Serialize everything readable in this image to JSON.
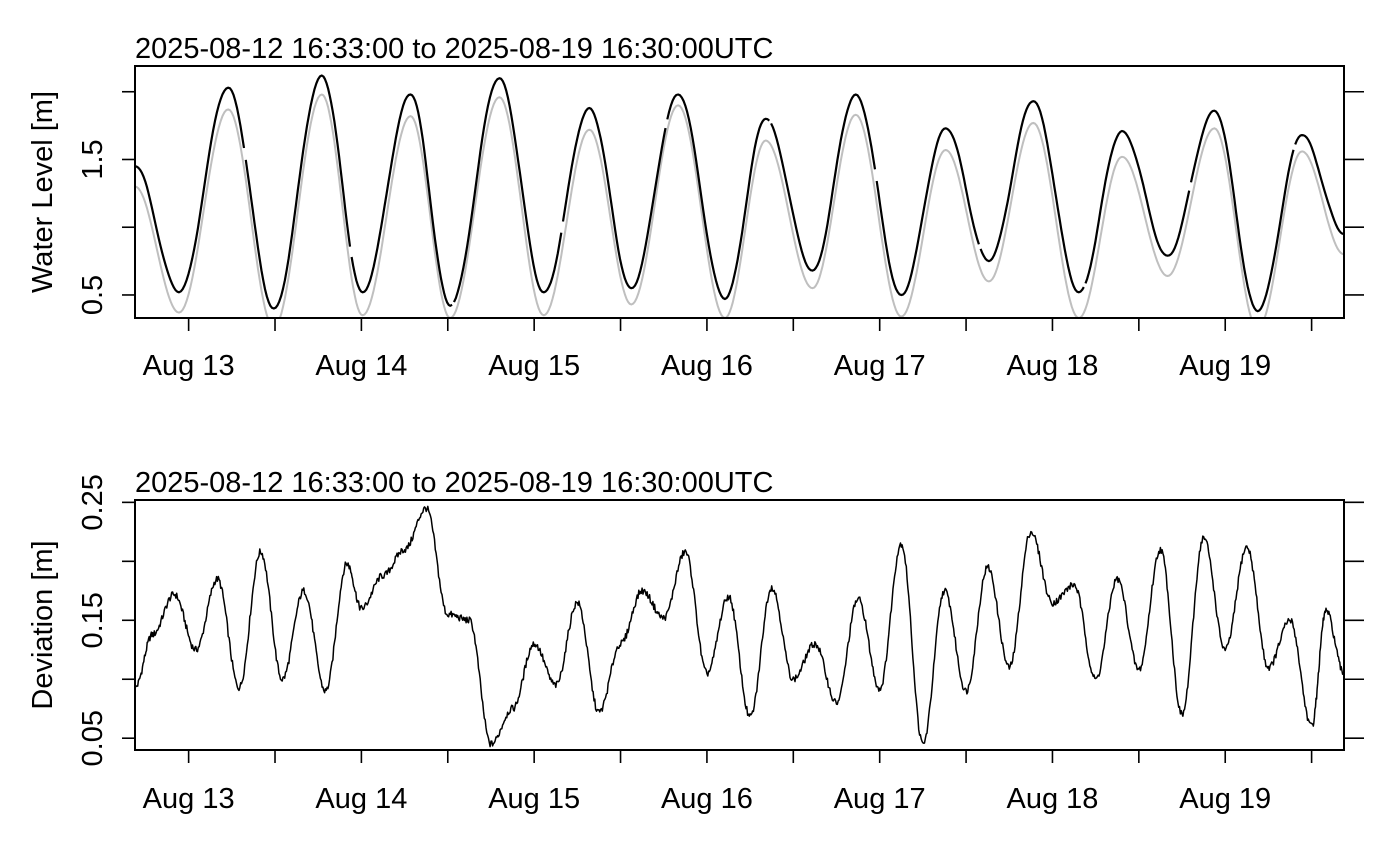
{
  "colors": {
    "observed": "#000000",
    "predicted": "#bfbfbf",
    "deviation": "#000000",
    "frame": "#000000",
    "background": "#ffffff"
  },
  "chart_data": [
    {
      "type": "line",
      "title": "2025-08-12 16:33:00 to 2025-08-19 16:30:00UTC",
      "ylabel": "Water Level [m]",
      "xlabel": "",
      "xlim": [
        "2025-08-12 16:33",
        "2025-08-19 16:30"
      ],
      "ylim": [
        0.33,
        2.19
      ],
      "x_ticks": [
        "2025-08-13 00:00",
        "2025-08-13 12:00",
        "2025-08-14 00:00",
        "2025-08-14 12:00",
        "2025-08-15 00:00",
        "2025-08-15 12:00",
        "2025-08-16 00:00",
        "2025-08-16 12:00",
        "2025-08-17 00:00",
        "2025-08-17 12:00",
        "2025-08-18 00:00",
        "2025-08-18 12:00",
        "2025-08-19 00:00",
        "2025-08-19 12:00"
      ],
      "x_tick_labels": [
        "Aug 13",
        "",
        "Aug 14",
        "",
        "Aug 15",
        "",
        "Aug 16",
        "",
        "Aug 17",
        "",
        "Aug 18",
        "",
        "Aug 19",
        ""
      ],
      "y_ticks": [
        0.5,
        1.0,
        1.5,
        2.0
      ],
      "y_tick_labels": [
        "0.5",
        "",
        "1.5",
        ""
      ],
      "grid": false,
      "right_axis_ticks": true,
      "series": [
        {
          "x": [
            "2025-08-12 16:33",
            "2025-08-12 22:40",
            "2025-08-13 05:30",
            "2025-08-13 11:50",
            "2025-08-13 18:30",
            "2025-08-14 00:10",
            "2025-08-14 06:50",
            "2025-08-14 12:20",
            "2025-08-14 19:10",
            "2025-08-15 01:20",
            "2025-08-15 07:40",
            "2025-08-15 13:30",
            "2025-08-15 20:00",
            "2025-08-16 02:30",
            "2025-08-16 08:10",
            "2025-08-16 14:40",
            "2025-08-16 20:40",
            "2025-08-17 03:00",
            "2025-08-17 09:10",
            "2025-08-17 15:10",
            "2025-08-17 21:20",
            "2025-08-18 03:40",
            "2025-08-18 09:40",
            "2025-08-18 16:00",
            "2025-08-18 22:30",
            "2025-08-19 04:30",
            "2025-08-19 10:40",
            "2025-08-19 16:30"
          ],
          "values": [
            1.45,
            0.52,
            2.03,
            0.4,
            2.12,
            0.52,
            1.98,
            0.42,
            2.1,
            0.52,
            1.88,
            0.55,
            1.98,
            0.47,
            1.8,
            0.68,
            1.98,
            0.5,
            1.73,
            0.75,
            1.93,
            0.52,
            1.71,
            0.79,
            1.86,
            0.38,
            1.68,
            0.95
          ]
        },
        {
          "x": [
            "2025-08-12 16:33",
            "2025-08-12 22:40",
            "2025-08-13 05:30",
            "2025-08-13 11:50",
            "2025-08-13 18:30",
            "2025-08-14 00:10",
            "2025-08-14 06:50",
            "2025-08-14 12:20",
            "2025-08-14 19:10",
            "2025-08-15 01:20",
            "2025-08-15 07:40",
            "2025-08-15 13:30",
            "2025-08-15 20:00",
            "2025-08-16 02:30",
            "2025-08-16 08:10",
            "2025-08-16 14:40",
            "2025-08-16 20:40",
            "2025-08-17 03:00",
            "2025-08-17 09:10",
            "2025-08-17 15:10",
            "2025-08-17 21:20",
            "2025-08-18 03:40",
            "2025-08-18 09:40",
            "2025-08-18 16:00",
            "2025-08-18 22:30",
            "2025-08-19 04:30",
            "2025-08-19 10:40",
            "2025-08-19 16:30"
          ],
          "values": [
            1.3,
            0.37,
            1.87,
            0.26,
            1.98,
            0.35,
            1.82,
            0.33,
            1.96,
            0.35,
            1.72,
            0.43,
            1.9,
            0.33,
            1.64,
            0.55,
            1.83,
            0.34,
            1.57,
            0.6,
            1.77,
            0.33,
            1.52,
            0.64,
            1.73,
            0.25,
            1.56,
            0.8
          ]
        }
      ]
    },
    {
      "type": "line",
      "title": "2025-08-12 16:33:00 to 2025-08-19 16:30:00UTC",
      "ylabel": "Deviation [m]",
      "xlabel": "",
      "xlim": [
        "2025-08-12 16:33",
        "2025-08-19 16:30"
      ],
      "ylim": [
        0.04,
        0.252
      ],
      "x_ticks": [
        "2025-08-13 00:00",
        "2025-08-13 12:00",
        "2025-08-14 00:00",
        "2025-08-14 12:00",
        "2025-08-15 00:00",
        "2025-08-15 12:00",
        "2025-08-16 00:00",
        "2025-08-16 12:00",
        "2025-08-17 00:00",
        "2025-08-17 12:00",
        "2025-08-18 00:00",
        "2025-08-18 12:00",
        "2025-08-19 00:00",
        "2025-08-19 12:00"
      ],
      "x_tick_labels": [
        "Aug 13",
        "",
        "Aug 14",
        "",
        "Aug 15",
        "",
        "Aug 16",
        "",
        "Aug 17",
        "",
        "Aug 18",
        "",
        "Aug 19",
        ""
      ],
      "y_ticks": [
        0.05,
        0.1,
        0.15,
        0.2,
        0.25
      ],
      "y_tick_labels": [
        "0.05",
        "",
        "0.15",
        "",
        "0.25"
      ],
      "grid": false,
      "right_axis_ticks": true,
      "series": [
        {
          "x": [
            "2025-08-12 16:33",
            "2025-08-12 19:00",
            "2025-08-12 22:00",
            "2025-08-13 01:00",
            "2025-08-13 04:00",
            "2025-08-13 07:00",
            "2025-08-13 10:00",
            "2025-08-13 13:00",
            "2025-08-13 16:00",
            "2025-08-13 19:00",
            "2025-08-13 22:00",
            "2025-08-14 00:00",
            "2025-08-14 03:00",
            "2025-08-14 06:00",
            "2025-08-14 09:00",
            "2025-08-14 12:00",
            "2025-08-14 15:00",
            "2025-08-14 18:00",
            "2025-08-14 21:00",
            "2025-08-15 00:00",
            "2025-08-15 03:00",
            "2025-08-15 06:00",
            "2025-08-15 09:00",
            "2025-08-15 12:00",
            "2025-08-15 15:00",
            "2025-08-15 18:00",
            "2025-08-15 21:00",
            "2025-08-16 00:00",
            "2025-08-16 03:00",
            "2025-08-16 06:00",
            "2025-08-16 09:00",
            "2025-08-16 12:00",
            "2025-08-16 15:00",
            "2025-08-16 18:00",
            "2025-08-16 21:00",
            "2025-08-17 00:00",
            "2025-08-17 03:00",
            "2025-08-17 06:00",
            "2025-08-17 09:00",
            "2025-08-17 12:00",
            "2025-08-17 15:00",
            "2025-08-17 18:00",
            "2025-08-17 21:00",
            "2025-08-18 00:00",
            "2025-08-18 03:00",
            "2025-08-18 06:00",
            "2025-08-18 09:00",
            "2025-08-18 12:00",
            "2025-08-18 15:00",
            "2025-08-18 18:00",
            "2025-08-18 21:00",
            "2025-08-19 00:00",
            "2025-08-19 03:00",
            "2025-08-19 06:00",
            "2025-08-19 09:00",
            "2025-08-19 12:00",
            "2025-08-19 14:00",
            "2025-08-19 16:30"
          ],
          "values": [
            0.093,
            0.138,
            0.172,
            0.125,
            0.185,
            0.093,
            0.208,
            0.1,
            0.175,
            0.09,
            0.198,
            0.16,
            0.188,
            0.21,
            0.245,
            0.155,
            0.15,
            0.045,
            0.075,
            0.13,
            0.095,
            0.165,
            0.072,
            0.13,
            0.175,
            0.152,
            0.208,
            0.105,
            0.17,
            0.068,
            0.178,
            0.1,
            0.13,
            0.08,
            0.168,
            0.092,
            0.215,
            0.045,
            0.175,
            0.09,
            0.195,
            0.11,
            0.225,
            0.165,
            0.18,
            0.1,
            0.185,
            0.108,
            0.21,
            0.07,
            0.22,
            0.125,
            0.212,
            0.11,
            0.15,
            0.06,
            0.158,
            0.105
          ]
        }
      ]
    }
  ]
}
